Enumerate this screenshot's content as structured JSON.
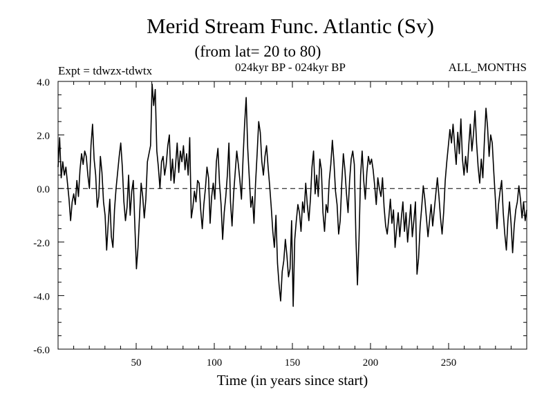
{
  "chart_data": {
    "type": "line",
    "title": "Merid Stream Func. Atlantic (Sv)",
    "subtitle": "(from lat= 20 to 80)",
    "experiment_label": "Expt = tdwzx-tdwtx",
    "period_label": "024kyr BP - 024kyr BP",
    "months_label": "ALL_MONTHS",
    "xlabel": "Time (in years since start)",
    "ylabel": "",
    "xlim": [
      0,
      300
    ],
    "ylim": [
      -6.0,
      4.0
    ],
    "x_ticks": [
      50,
      100,
      150,
      200,
      250
    ],
    "x_tick_labels": [
      "50",
      "100",
      "150",
      "200",
      "250"
    ],
    "y_ticks": [
      -6,
      -4,
      -2,
      0,
      2,
      4
    ],
    "y_tick_labels": [
      "-6.0",
      "-4.0",
      "-2.0",
      "0.0",
      "2.0",
      "4.0"
    ],
    "reference_line": {
      "y": 0,
      "style": "dashed"
    },
    "grid": false,
    "line_color": "#000000",
    "series": [
      {
        "values": [
          0.8,
          1.9,
          0.4,
          1.0,
          0.5,
          0.8,
          0.2,
          -0.4,
          -1.2,
          -0.5,
          -0.2,
          -0.6,
          0.3,
          -0.3,
          0.7,
          1.3,
          0.9,
          1.4,
          1.2,
          0.5,
          0.0,
          1.6,
          2.4,
          1.1,
          0.5,
          -0.7,
          -0.3,
          1.2,
          0.6,
          -0.5,
          -1.0,
          -2.3,
          -1.3,
          -0.4,
          -1.8,
          -2.2,
          -0.8,
          0.0,
          0.6,
          1.2,
          1.7,
          0.8,
          -0.5,
          -1.2,
          -0.7,
          0.5,
          -1.0,
          -0.1,
          0.3,
          -1.4,
          -3.0,
          -2.2,
          -1.0,
          0.2,
          -0.3,
          -1.1,
          -0.4,
          1.0,
          1.3,
          1.6,
          3.9,
          3.1,
          3.7,
          1.4,
          0.8,
          0.0,
          1.0,
          1.2,
          0.5,
          0.9,
          1.6,
          2.0,
          0.3,
          1.1,
          0.2,
          0.9,
          1.7,
          0.6,
          1.4,
          1.0,
          1.6,
          0.7,
          1.3,
          0.5,
          1.9,
          -1.1,
          -0.7,
          -0.1,
          -0.5,
          0.3,
          0.2,
          -0.8,
          -1.5,
          -0.6,
          0.0,
          0.8,
          0.4,
          -1.3,
          -0.3,
          0.2,
          -0.4,
          1.0,
          1.5,
          0.2,
          -0.6,
          -1.9,
          -0.9,
          -0.3,
          0.5,
          1.7,
          -0.5,
          -1.4,
          -0.2,
          0.6,
          1.4,
          0.9,
          0.3,
          -0.4,
          1.1,
          2.4,
          3.4,
          1.5,
          0.4,
          -0.7,
          -0.3,
          -1.3,
          0.2,
          1.3,
          2.5,
          2.1,
          1.0,
          0.5,
          1.2,
          1.6,
          0.8,
          0.1,
          -0.7,
          -1.6,
          -2.2,
          -1.0,
          -2.8,
          -3.6,
          -4.2,
          -3.1,
          -2.7,
          -1.9,
          -2.5,
          -3.3,
          -3.0,
          -1.2,
          -4.4,
          -1.9,
          -1.2,
          -0.6,
          -0.9,
          -1.6,
          -0.5,
          -0.9,
          0.2,
          -0.6,
          -1.2,
          -0.4,
          0.8,
          1.4,
          -0.2,
          0.5,
          -0.3,
          1.1,
          0.7,
          -0.9,
          -1.6,
          -0.6,
          -0.9,
          0.3,
          0.9,
          1.8,
          1.0,
          -0.1,
          -0.6,
          -1.7,
          -1.2,
          0.2,
          1.3,
          0.7,
          -0.2,
          -0.9,
          0.3,
          1.1,
          1.4,
          0.9,
          -1.8,
          -3.6,
          -1.9,
          0.5,
          1.4,
          0.3,
          -0.4,
          0.6,
          1.2,
          0.9,
          1.1,
          0.7,
          0.1,
          -0.6,
          0.4,
          0.0,
          -0.3,
          0.4,
          -0.7,
          -1.4,
          -1.7,
          -1.1,
          -0.4,
          -1.3,
          -0.8,
          -2.2,
          -1.5,
          -0.9,
          -1.8,
          -1.1,
          -0.5,
          -1.6,
          -0.9,
          -2.0,
          -1.3,
          -0.6,
          -1.8,
          -1.2,
          -0.5,
          -3.2,
          -2.6,
          -1.4,
          -0.7,
          0.1,
          -0.4,
          -1.1,
          -1.8,
          -1.2,
          -0.6,
          -1.4,
          -0.8,
          -0.2,
          0.4,
          -0.3,
          -1.1,
          -1.7,
          -0.9,
          0.3,
          1.0,
          1.6,
          2.2,
          1.7,
          2.4,
          1.6,
          0.9,
          2.1,
          1.3,
          2.6,
          1.1,
          0.5,
          1.2,
          0.6,
          1.6,
          2.4,
          1.4,
          2.0,
          2.9,
          1.7,
          0.8,
          0.2,
          1.1,
          0.4,
          1.8,
          3.0,
          2.3,
          1.2,
          2.0,
          1.7,
          0.6,
          -0.4,
          -1.5,
          -0.6,
          -0.1,
          0.3,
          -0.9,
          -1.7,
          -2.3,
          -1.2,
          -0.5,
          -1.3,
          -2.4,
          -1.4,
          -0.8,
          -0.5,
          0.1,
          -0.4,
          -1.1,
          -0.5,
          -1.2,
          -0.8
        ]
      }
    ]
  }
}
